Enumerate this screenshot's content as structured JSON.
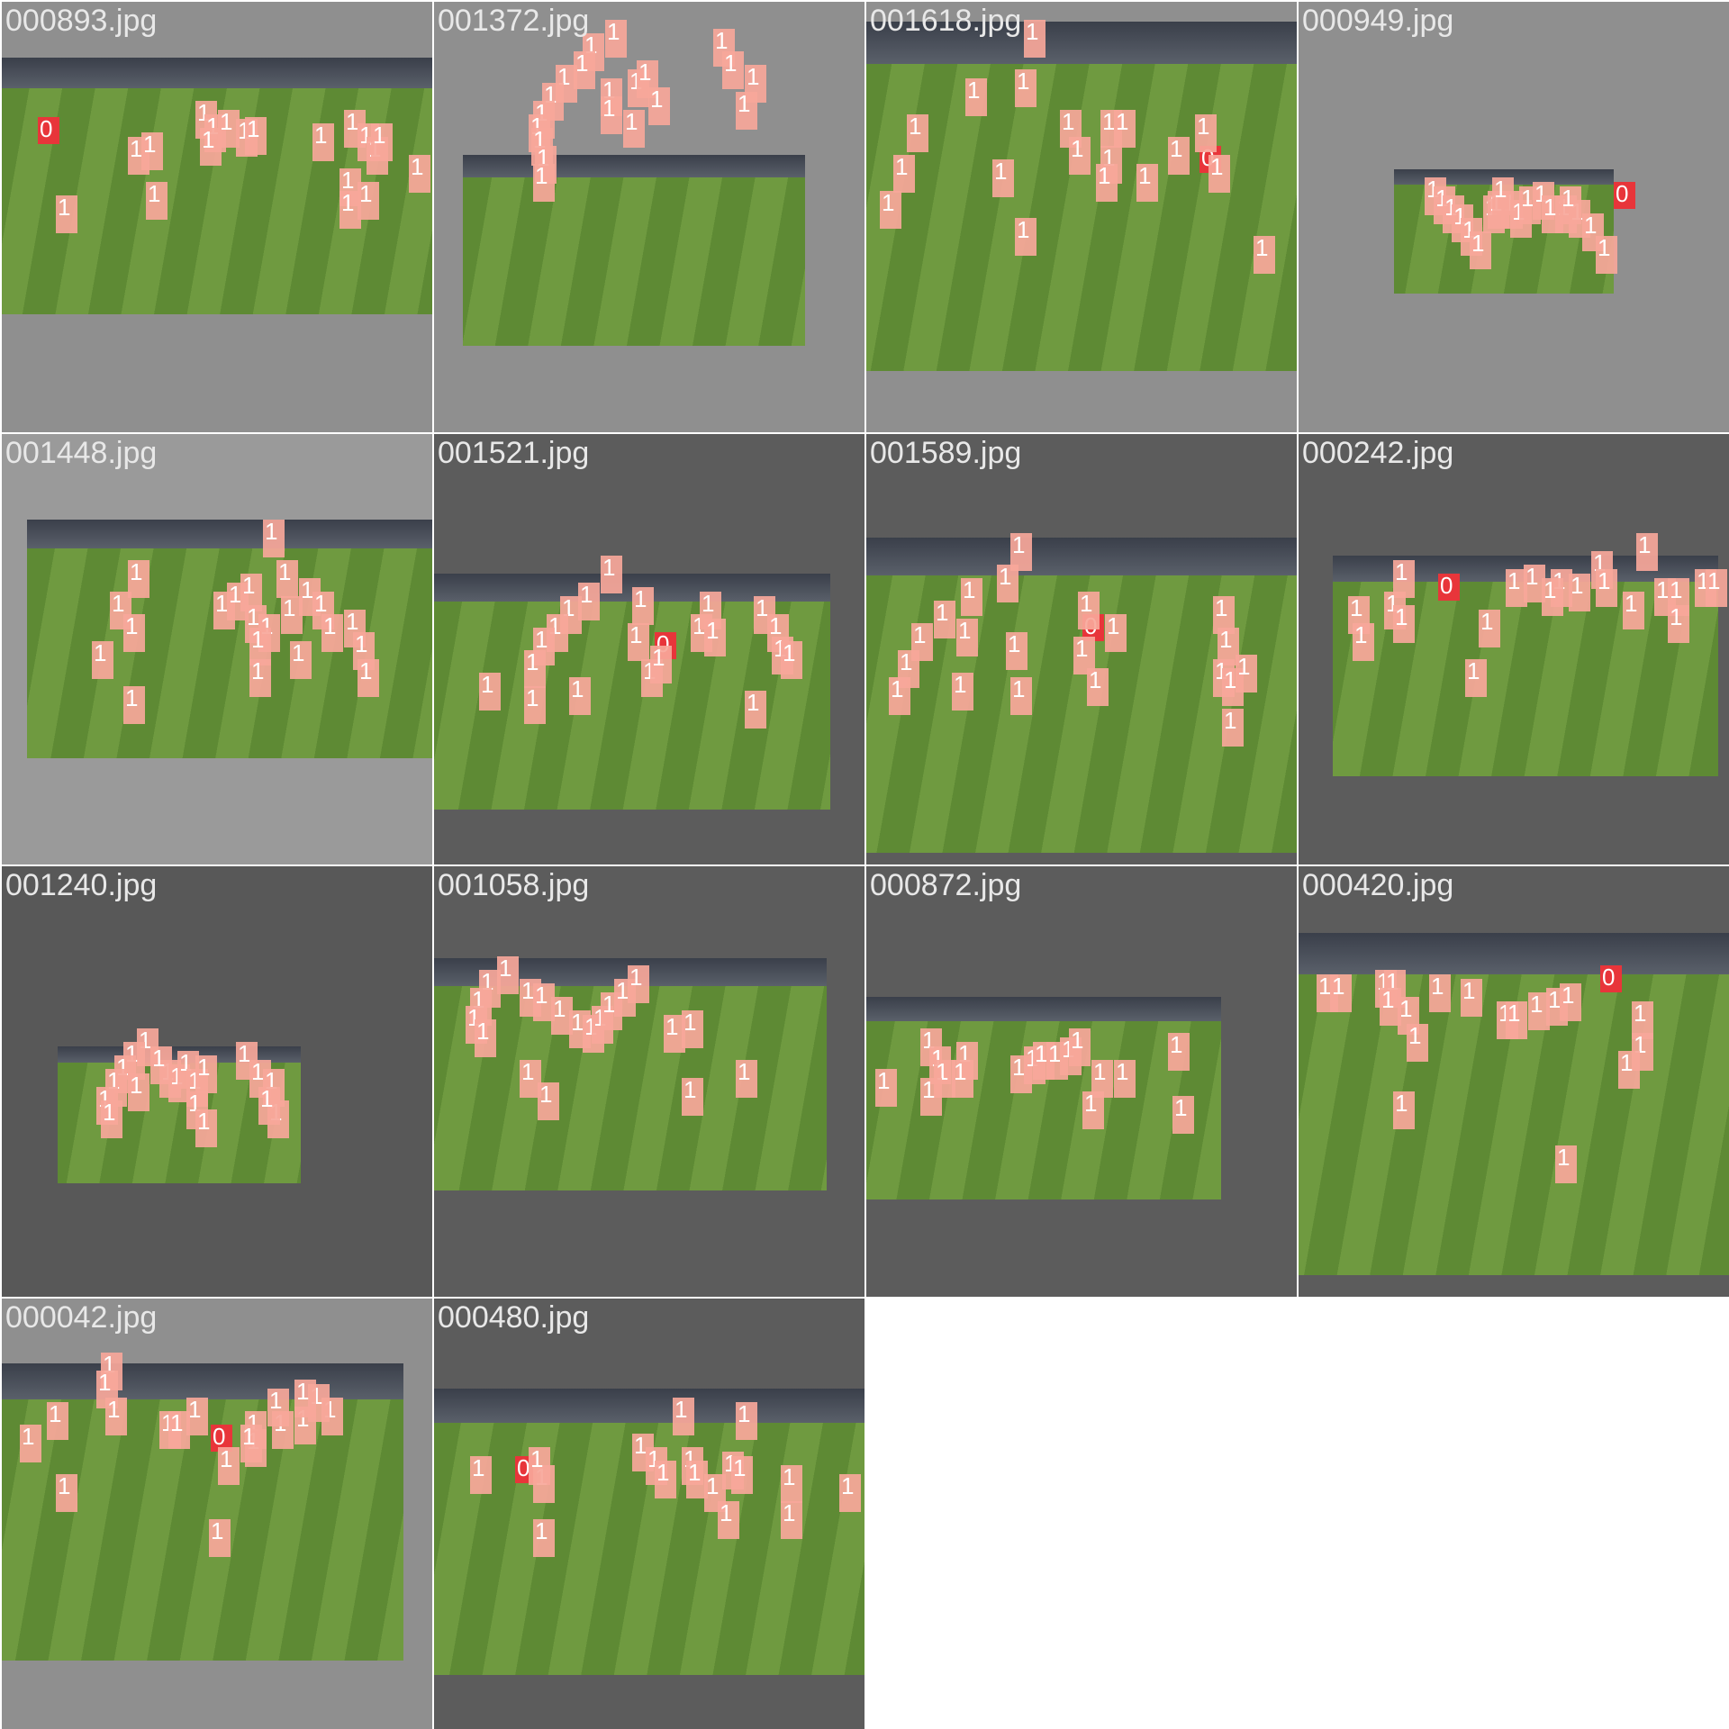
{
  "tiles": [
    {
      "filename": "000893.jpg",
      "bg": "#8f8f8f",
      "boxes": [
        0,
        1,
        1,
        1,
        1,
        1,
        1,
        1,
        1,
        1,
        1,
        1,
        1,
        1,
        1,
        1,
        1,
        1,
        1,
        1
      ]
    },
    {
      "filename": "001372.jpg",
      "bg": "#8f8f8f",
      "boxes": [
        1,
        1,
        1,
        1,
        1,
        1,
        1,
        1,
        1,
        1,
        1,
        1,
        1,
        1,
        1,
        1,
        1,
        1,
        1,
        1
      ]
    },
    {
      "filename": "001618.jpg",
      "bg": "#8f8f8f",
      "boxes": [
        1,
        1,
        1,
        1,
        1,
        1,
        1,
        1,
        1,
        0,
        1,
        1,
        1,
        1,
        1,
        1,
        1,
        1,
        1,
        1
      ]
    },
    {
      "filename": "000949.jpg",
      "bg": "#8f8f8f",
      "boxes": [
        0,
        1,
        1,
        1,
        1,
        1,
        1,
        1,
        1,
        1,
        1,
        1,
        1,
        1,
        1,
        1,
        1,
        1,
        1,
        1
      ]
    },
    {
      "filename": "001448.jpg",
      "bg": "#9a9a9a",
      "boxes": [
        1,
        1,
        1,
        1,
        1,
        1,
        1,
        1,
        1,
        1,
        1,
        1,
        1,
        1,
        1,
        1,
        1,
        1,
        1,
        1,
        1,
        1
      ]
    },
    {
      "filename": "001521.jpg",
      "bg": "#5c5c5c",
      "boxes": [
        1,
        1,
        1,
        1,
        1,
        1,
        1,
        1,
        1,
        1,
        0,
        1,
        1,
        1,
        1,
        1,
        1,
        1,
        1,
        1,
        1,
        1
      ]
    },
    {
      "filename": "001589.jpg",
      "bg": "#5c5c5c",
      "boxes": [
        1,
        1,
        1,
        1,
        1,
        1,
        1,
        1,
        1,
        0,
        1,
        1,
        1,
        1,
        1,
        1,
        1,
        1,
        1,
        1,
        1,
        1
      ]
    },
    {
      "filename": "000242.jpg",
      "bg": "#5c5c5c",
      "boxes": [
        1,
        1,
        1,
        0,
        1,
        1,
        1,
        1,
        1,
        1,
        1,
        1,
        1,
        1,
        1,
        1,
        1,
        1,
        1,
        1,
        1,
        1
      ]
    },
    {
      "filename": "001240.jpg",
      "bg": "#585858",
      "boxes": [
        1,
        1,
        1,
        1,
        1,
        1,
        1,
        1,
        1,
        1,
        1,
        1,
        1,
        1,
        1,
        1,
        1,
        1,
        1,
        1
      ]
    },
    {
      "filename": "001058.jpg",
      "bg": "#5c5c5c",
      "boxes": [
        1,
        1,
        1,
        1,
        1,
        1,
        1,
        1,
        1,
        1,
        1,
        1,
        1,
        1,
        1,
        1,
        1,
        1,
        1,
        1
      ]
    },
    {
      "filename": "000872.jpg",
      "bg": "#5c5c5c",
      "boxes": [
        1,
        1,
        1,
        1,
        1,
        1,
        1,
        1,
        1,
        1,
        1,
        1,
        1,
        1,
        1,
        1,
        1,
        1
      ]
    },
    {
      "filename": "000420.jpg",
      "bg": "#5c5c5c",
      "boxes": [
        1,
        1,
        1,
        1,
        1,
        1,
        1,
        1,
        1,
        1,
        1,
        1,
        1,
        0,
        1,
        1,
        1,
        1,
        1,
        1
      ]
    },
    {
      "filename": "000042.jpg",
      "bg": "#8f8f8f",
      "boxes": [
        1,
        1,
        1,
        1,
        1,
        1,
        1,
        1,
        1,
        0,
        1,
        1,
        1,
        1,
        1,
        1,
        1,
        1,
        1,
        1,
        1
      ]
    },
    {
      "filename": "000480.jpg",
      "bg": "#5c5c5c",
      "boxes": [
        1,
        1,
        0,
        1,
        1,
        1,
        1,
        1,
        1,
        1,
        1,
        1,
        1,
        1,
        1,
        1,
        1,
        1,
        1
      ]
    }
  ],
  "class_colors": {
    "0": "#e8353a",
    "1": "#f7a79a"
  }
}
